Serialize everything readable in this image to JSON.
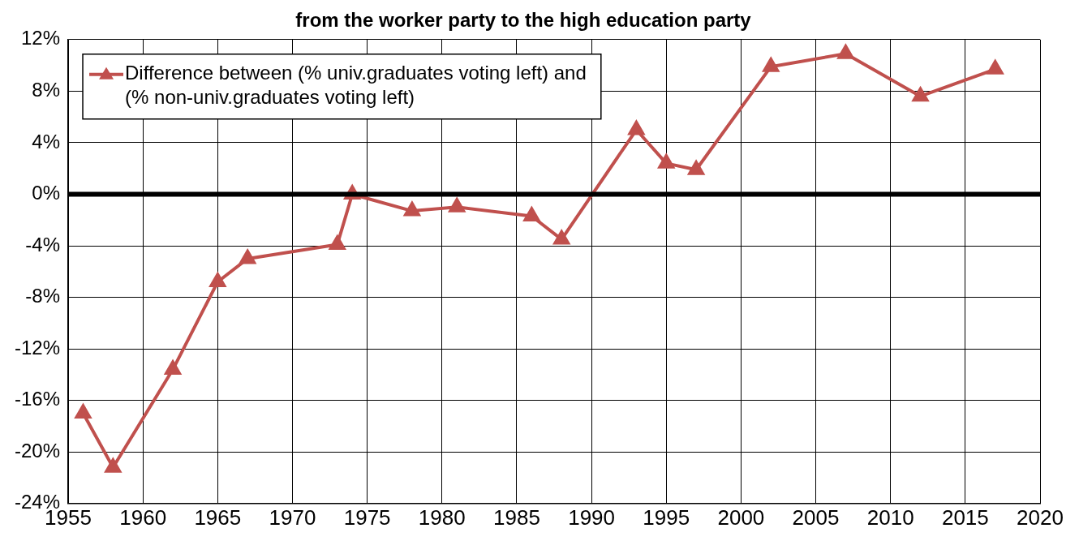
{
  "chart_data": {
    "type": "line",
    "title": "from the worker party to the high education party",
    "x": [
      1956,
      1958,
      1962,
      1965,
      1967,
      1973,
      1974,
      1978,
      1981,
      1986,
      1988,
      1993,
      1995,
      1997,
      2002,
      2007,
      2012,
      2017
    ],
    "series": [
      {
        "name": "Difference between (% univ.graduates voting left) and (% non-univ.graduates voting left)",
        "color": "#c0504d",
        "values": [
          -17.0,
          -21.2,
          -13.6,
          -6.8,
          -5.0,
          -3.9,
          0.0,
          -1.3,
          -1.0,
          -1.7,
          -3.5,
          5.0,
          2.4,
          1.9,
          9.9,
          10.9,
          7.6,
          9.7
        ]
      }
    ],
    "xlim": [
      1955,
      2020
    ],
    "xticks": [
      1955,
      1960,
      1965,
      1970,
      1975,
      1980,
      1985,
      1990,
      1995,
      2000,
      2005,
      2010,
      2015,
      2020
    ],
    "ylim": [
      -24,
      12
    ],
    "yticks": [
      {
        "value": -24,
        "label": "-24%"
      },
      {
        "value": -20,
        "label": "-20%"
      },
      {
        "value": -16,
        "label": "-16%"
      },
      {
        "value": -12,
        "label": "-12%"
      },
      {
        "value": -8,
        "label": "-8%"
      },
      {
        "value": -4,
        "label": "-4%"
      },
      {
        "value": 0,
        "label": "0%"
      },
      {
        "value": 4,
        "label": "4%"
      },
      {
        "value": 8,
        "label": "8%"
      },
      {
        "value": 12,
        "label": "12%"
      }
    ],
    "ref_lines": [
      {
        "axis": "y",
        "value": 0,
        "color": "#000000"
      }
    ],
    "grid": true,
    "legend": "top left",
    "marker": "triangle",
    "line_style": "solid"
  }
}
